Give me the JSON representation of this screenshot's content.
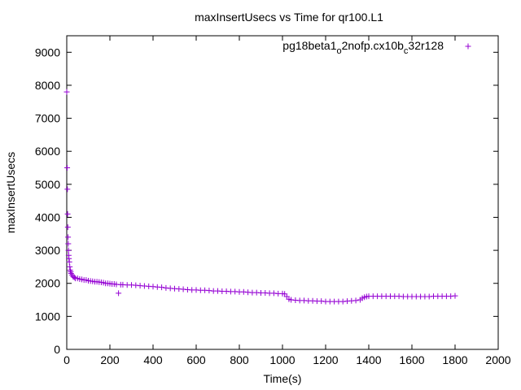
{
  "chart_data": {
    "type": "scatter",
    "title": "maxInsertUsecs vs Time for qr100.L1",
    "xlabel": "Time(s)",
    "ylabel": "maxInsertUsecs",
    "xlim": [
      0,
      2000
    ],
    "ylim": [
      0,
      9500
    ],
    "xticks": [
      0,
      200,
      400,
      600,
      800,
      1000,
      1200,
      1400,
      1600,
      1800,
      2000
    ],
    "yticks": [
      0,
      1000,
      2000,
      3000,
      4000,
      5000,
      6000,
      7000,
      8000,
      9000
    ],
    "grid": false,
    "legend_position": "top-right",
    "marker": "+",
    "series": [
      {
        "legend_parts": [
          {
            "text": "pg18beta1",
            "sub": false
          },
          {
            "text": "o",
            "sub": true
          },
          {
            "text": "2nofp.cx10b",
            "sub": false
          },
          {
            "text": "c",
            "sub": true
          },
          {
            "text": "32r128",
            "sub": false
          }
        ],
        "color": "#9400d3",
        "x": [
          0,
          2,
          3,
          4,
          5,
          6,
          7,
          8,
          9,
          10,
          12,
          14,
          16,
          18,
          20,
          25,
          30,
          35,
          40,
          50,
          60,
          70,
          80,
          90,
          100,
          110,
          120,
          130,
          140,
          150,
          160,
          170,
          180,
          190,
          200,
          210,
          220,
          230,
          240,
          250,
          260,
          280,
          300,
          320,
          340,
          360,
          380,
          400,
          420,
          440,
          460,
          480,
          500,
          520,
          540,
          560,
          580,
          600,
          620,
          640,
          660,
          680,
          700,
          720,
          740,
          760,
          780,
          800,
          820,
          840,
          860,
          880,
          900,
          920,
          940,
          960,
          980,
          1000,
          1010,
          1020,
          1030,
          1040,
          1060,
          1080,
          1100,
          1120,
          1140,
          1160,
          1180,
          1200,
          1220,
          1240,
          1260,
          1280,
          1300,
          1320,
          1340,
          1360,
          1370,
          1380,
          1390,
          1400,
          1420,
          1440,
          1460,
          1480,
          1500,
          1520,
          1540,
          1560,
          1580,
          1600,
          1620,
          1640,
          1660,
          1680,
          1700,
          1720,
          1740,
          1760,
          1780,
          1800
        ],
        "y": [
          7800,
          5500,
          4850,
          4100,
          3700,
          3400,
          3200,
          3000,
          2850,
          2750,
          2650,
          2500,
          2400,
          2350,
          2300,
          2250,
          2200,
          2180,
          2150,
          2150,
          2130,
          2120,
          2100,
          2100,
          2080,
          2070,
          2060,
          2050,
          2050,
          2040,
          2030,
          2020,
          2000,
          2000,
          1990,
          1980,
          1980,
          1970,
          1700,
          1960,
          1960,
          1950,
          1950,
          1940,
          1930,
          1920,
          1910,
          1900,
          1890,
          1880,
          1860,
          1850,
          1840,
          1830,
          1820,
          1810,
          1800,
          1800,
          1790,
          1790,
          1780,
          1770,
          1770,
          1760,
          1760,
          1750,
          1750,
          1740,
          1740,
          1730,
          1720,
          1720,
          1710,
          1710,
          1700,
          1700,
          1690,
          1690,
          1680,
          1600,
          1520,
          1500,
          1490,
          1480,
          1480,
          1470,
          1470,
          1460,
          1460,
          1450,
          1450,
          1450,
          1450,
          1450,
          1460,
          1470,
          1480,
          1500,
          1550,
          1580,
          1600,
          1610,
          1610,
          1610,
          1610,
          1610,
          1610,
          1610,
          1610,
          1600,
          1600,
          1600,
          1600,
          1600,
          1600,
          1600,
          1610,
          1610,
          1610,
          1610,
          1610,
          1620
        ]
      }
    ]
  }
}
